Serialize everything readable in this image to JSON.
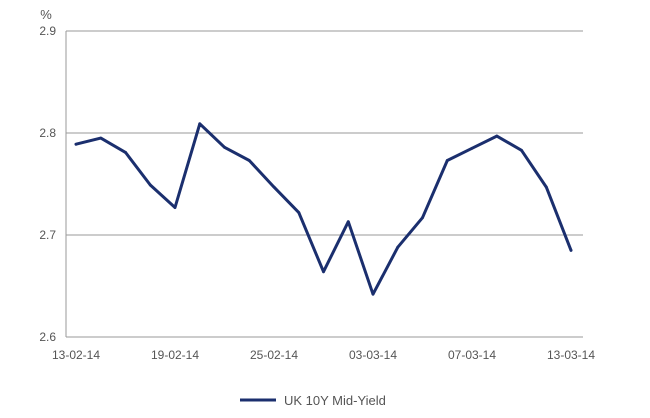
{
  "chart_data": {
    "type": "line",
    "title": "",
    "xlabel": "",
    "ylabel": "%",
    "ylim": [
      2.6,
      2.9
    ],
    "yticks": [
      "2.6",
      "2.7",
      "2.8",
      "2.9"
    ],
    "grid": "horizontal",
    "legend_position": "bottom-center",
    "x_tick_labels": [
      "13-02-14",
      "19-02-14",
      "25-02-14",
      "03-03-14",
      "07-03-14",
      "13-03-14"
    ],
    "x": [
      "13-02-14",
      "14-02-14",
      "17-02-14",
      "18-02-14",
      "19-02-14",
      "20-02-14",
      "21-02-14",
      "24-02-14",
      "25-02-14",
      "26-02-14",
      "27-02-14",
      "28-02-14",
      "03-03-14",
      "04-03-14",
      "05-03-14",
      "06-03-14",
      "07-03-14",
      "10-03-14",
      "11-03-14",
      "12-03-14",
      "13-03-14"
    ],
    "series": [
      {
        "name": "UK 10Y Mid-Yield",
        "color": "#1b2f6e",
        "values": [
          2.789,
          2.795,
          2.781,
          2.749,
          2.727,
          2.809,
          2.786,
          2.773,
          2.747,
          2.722,
          2.664,
          2.713,
          2.642,
          2.688,
          2.717,
          2.773,
          2.785,
          2.797,
          2.783,
          2.747,
          2.685
        ]
      }
    ]
  }
}
